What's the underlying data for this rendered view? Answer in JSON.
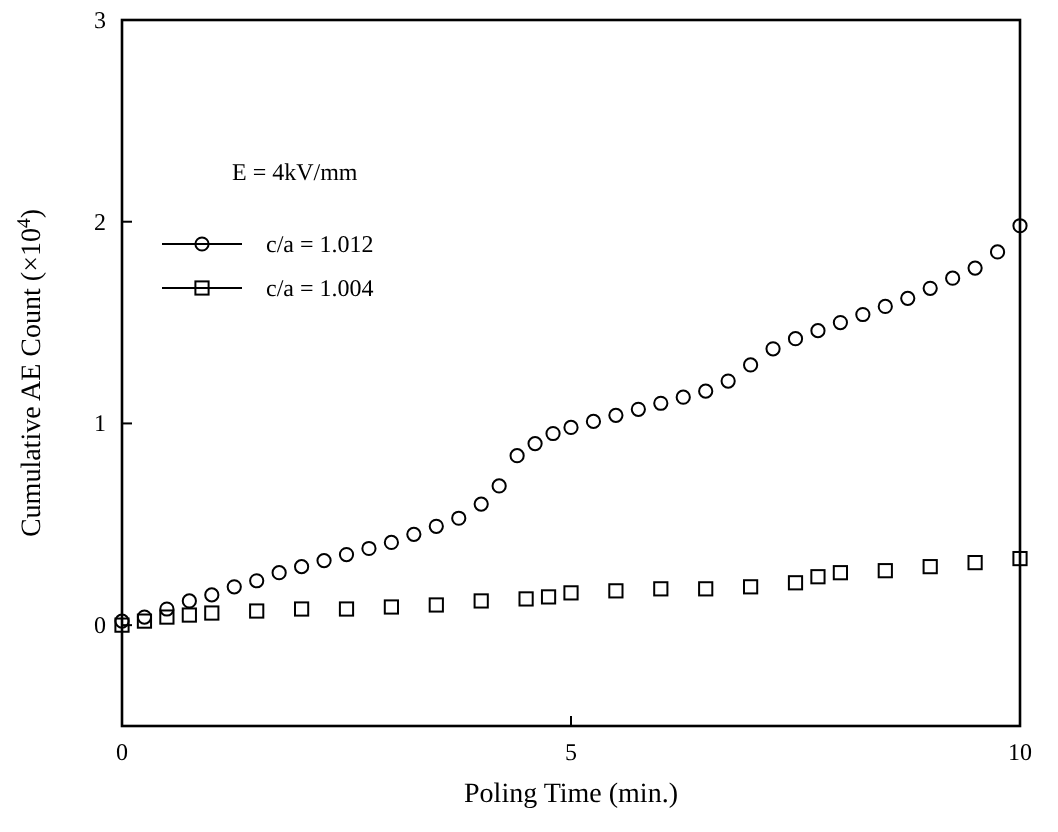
{
  "chart_data": {
    "type": "scatter",
    "xlabel": "Poling Time (min.)",
    "ylabel": "Cumulative AE Count (×10$^{4}$)",
    "xlim": [
      0,
      10
    ],
    "ylim": [
      -0.5,
      3
    ],
    "xticks": [
      0,
      5,
      10
    ],
    "yticks": [
      0,
      1,
      2,
      3
    ],
    "grid": false,
    "legend": "top left",
    "legend_title": "E = 4kV/mm",
    "series": [
      {
        "name": "c/a = 1.012",
        "color": "#000000",
        "marker": "circle",
        "x": [
          0,
          0.25,
          0.5,
          0.75,
          1,
          1.25,
          1.5,
          1.75,
          2,
          2.25,
          2.5,
          2.75,
          3,
          3.25,
          3.5,
          3.75,
          4,
          4.2,
          4.4,
          4.6,
          4.8,
          5,
          5.25,
          5.5,
          5.75,
          6,
          6.25,
          6.5,
          6.75,
          7,
          7.25,
          7.5,
          7.75,
          8,
          8.25,
          8.5,
          8.75,
          9,
          9.25,
          9.5,
          9.75,
          10
        ],
        "values": [
          0.02,
          0.04,
          0.08,
          0.12,
          0.15,
          0.19,
          0.22,
          0.26,
          0.29,
          0.32,
          0.35,
          0.38,
          0.41,
          0.45,
          0.49,
          0.53,
          0.6,
          0.69,
          0.84,
          0.9,
          0.95,
          0.98,
          1.01,
          1.04,
          1.07,
          1.1,
          1.13,
          1.16,
          1.21,
          1.29,
          1.37,
          1.42,
          1.46,
          1.5,
          1.54,
          1.58,
          1.62,
          1.67,
          1.72,
          1.77,
          1.85,
          1.98
        ]
      },
      {
        "name": "c/a = 1.004",
        "color": "#000000",
        "marker": "square",
        "x": [
          0,
          0.25,
          0.5,
          0.75,
          1,
          1.5,
          2,
          2.5,
          3,
          3.5,
          4,
          4.5,
          4.75,
          5,
          5.5,
          6,
          6.5,
          7,
          7.5,
          7.75,
          8,
          8.5,
          9,
          9.5,
          10
        ],
        "values": [
          0,
          0.02,
          0.04,
          0.05,
          0.06,
          0.07,
          0.08,
          0.08,
          0.09,
          0.1,
          0.12,
          0.13,
          0.14,
          0.16,
          0.17,
          0.18,
          0.18,
          0.19,
          0.21,
          0.24,
          0.26,
          0.27,
          0.29,
          0.31,
          0.33
        ]
      }
    ]
  }
}
